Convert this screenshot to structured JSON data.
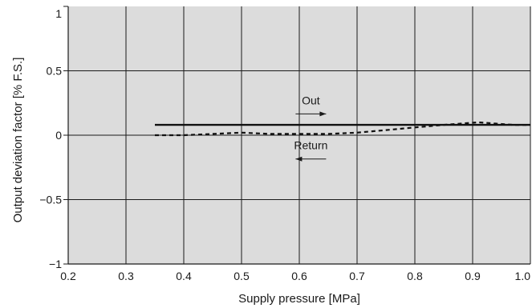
{
  "chart_data": {
    "type": "line",
    "xlabel": "Supply pressure [MPa]",
    "ylabel": "Output deviation factor [% F.S.]",
    "xlim": [
      0.2,
      1.0
    ],
    "ylim": [
      -1,
      1
    ],
    "x_ticks": [
      0.2,
      0.3,
      0.4,
      0.5,
      0.6,
      0.7,
      0.8,
      0.9,
      1.0
    ],
    "x_tick_labels": [
      "0.2",
      "0.3",
      "0.4",
      "0.5",
      "0.6",
      "0.7",
      "0.8",
      "0.9",
      "1.0"
    ],
    "y_ticks": [
      -1,
      -0.5,
      0,
      0.5,
      1
    ],
    "y_tick_labels": [
      "−1",
      "−0.5",
      "0",
      "0.5",
      "1"
    ],
    "grid": true,
    "plot_background": "#dcdcdc",
    "series": [
      {
        "name": "Out",
        "style": "solid",
        "color": "#111111",
        "x": [
          0.35,
          1.0
        ],
        "y": [
          0.08,
          0.08
        ]
      },
      {
        "name": "Return",
        "style": "dashed",
        "color": "#111111",
        "x": [
          0.35,
          0.4,
          0.45,
          0.5,
          0.55,
          0.6,
          0.65,
          0.7,
          0.75,
          0.8,
          0.85,
          0.88,
          0.91,
          0.94,
          0.97,
          1.0
        ],
        "y": [
          0.0,
          0.0,
          0.01,
          0.02,
          0.01,
          0.01,
          0.01,
          0.02,
          0.04,
          0.06,
          0.08,
          0.09,
          0.1,
          0.09,
          0.08,
          0.08
        ]
      }
    ],
    "annotations": [
      {
        "text": "Out",
        "x": 0.62,
        "y": 0.24,
        "arrow": "right"
      },
      {
        "text": "Return",
        "x": 0.62,
        "y": -0.11,
        "arrow": "left"
      }
    ]
  }
}
